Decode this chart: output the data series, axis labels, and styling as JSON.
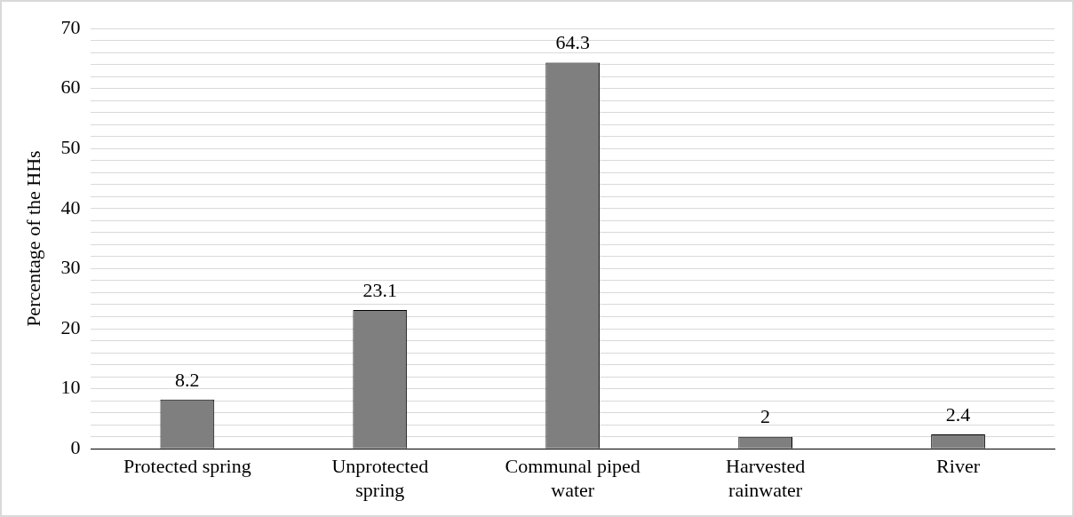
{
  "chart_data": {
    "type": "bar",
    "ylabel": "Percentage of the HHs",
    "categories": [
      "Protected spring",
      "Unprotected spring",
      "Communal piped water",
      "Harvested rainwater",
      "River"
    ],
    "values": [
      8.2,
      23.1,
      64.3,
      2,
      2.4
    ],
    "color": "#7f7f7f",
    "ylim": [
      0,
      70
    ],
    "yticks": [
      0,
      {
        "value": 2,
        "label": null
      },
      {
        "value": 4,
        "label": null
      },
      {
        "value": 6,
        "label": null
      },
      {
        "value": 8,
        "label": null
      },
      10,
      {
        "value": 12,
        "label": null
      },
      {
        "value": 14,
        "label": null
      },
      {
        "value": 16,
        "label": null
      },
      {
        "value": 18,
        "label": null
      },
      20,
      {
        "value": 22,
        "label": null
      },
      {
        "value": 24,
        "label": null
      },
      {
        "value": 26,
        "label": null
      },
      {
        "value": 28,
        "label": null
      },
      30,
      {
        "value": 32,
        "label": null
      },
      {
        "value": 34,
        "label": null
      },
      {
        "value": 36,
        "label": null
      },
      {
        "value": 38,
        "label": null
      },
      40,
      {
        "value": 42,
        "label": null
      },
      {
        "value": 44,
        "label": null
      },
      {
        "value": 46,
        "label": null
      },
      {
        "value": 48,
        "label": null
      },
      50,
      {
        "value": 52,
        "label": null
      },
      {
        "value": 54,
        "label": null
      },
      {
        "value": 56,
        "label": null
      },
      {
        "value": 58,
        "label": null
      },
      60,
      {
        "value": 62,
        "label": null
      },
      {
        "value": 64,
        "label": null
      },
      {
        "value": 66,
        "label": null
      },
      {
        "value": 68,
        "label": null
      },
      70
    ],
    "grid": "y",
    "data_labels": true
  }
}
